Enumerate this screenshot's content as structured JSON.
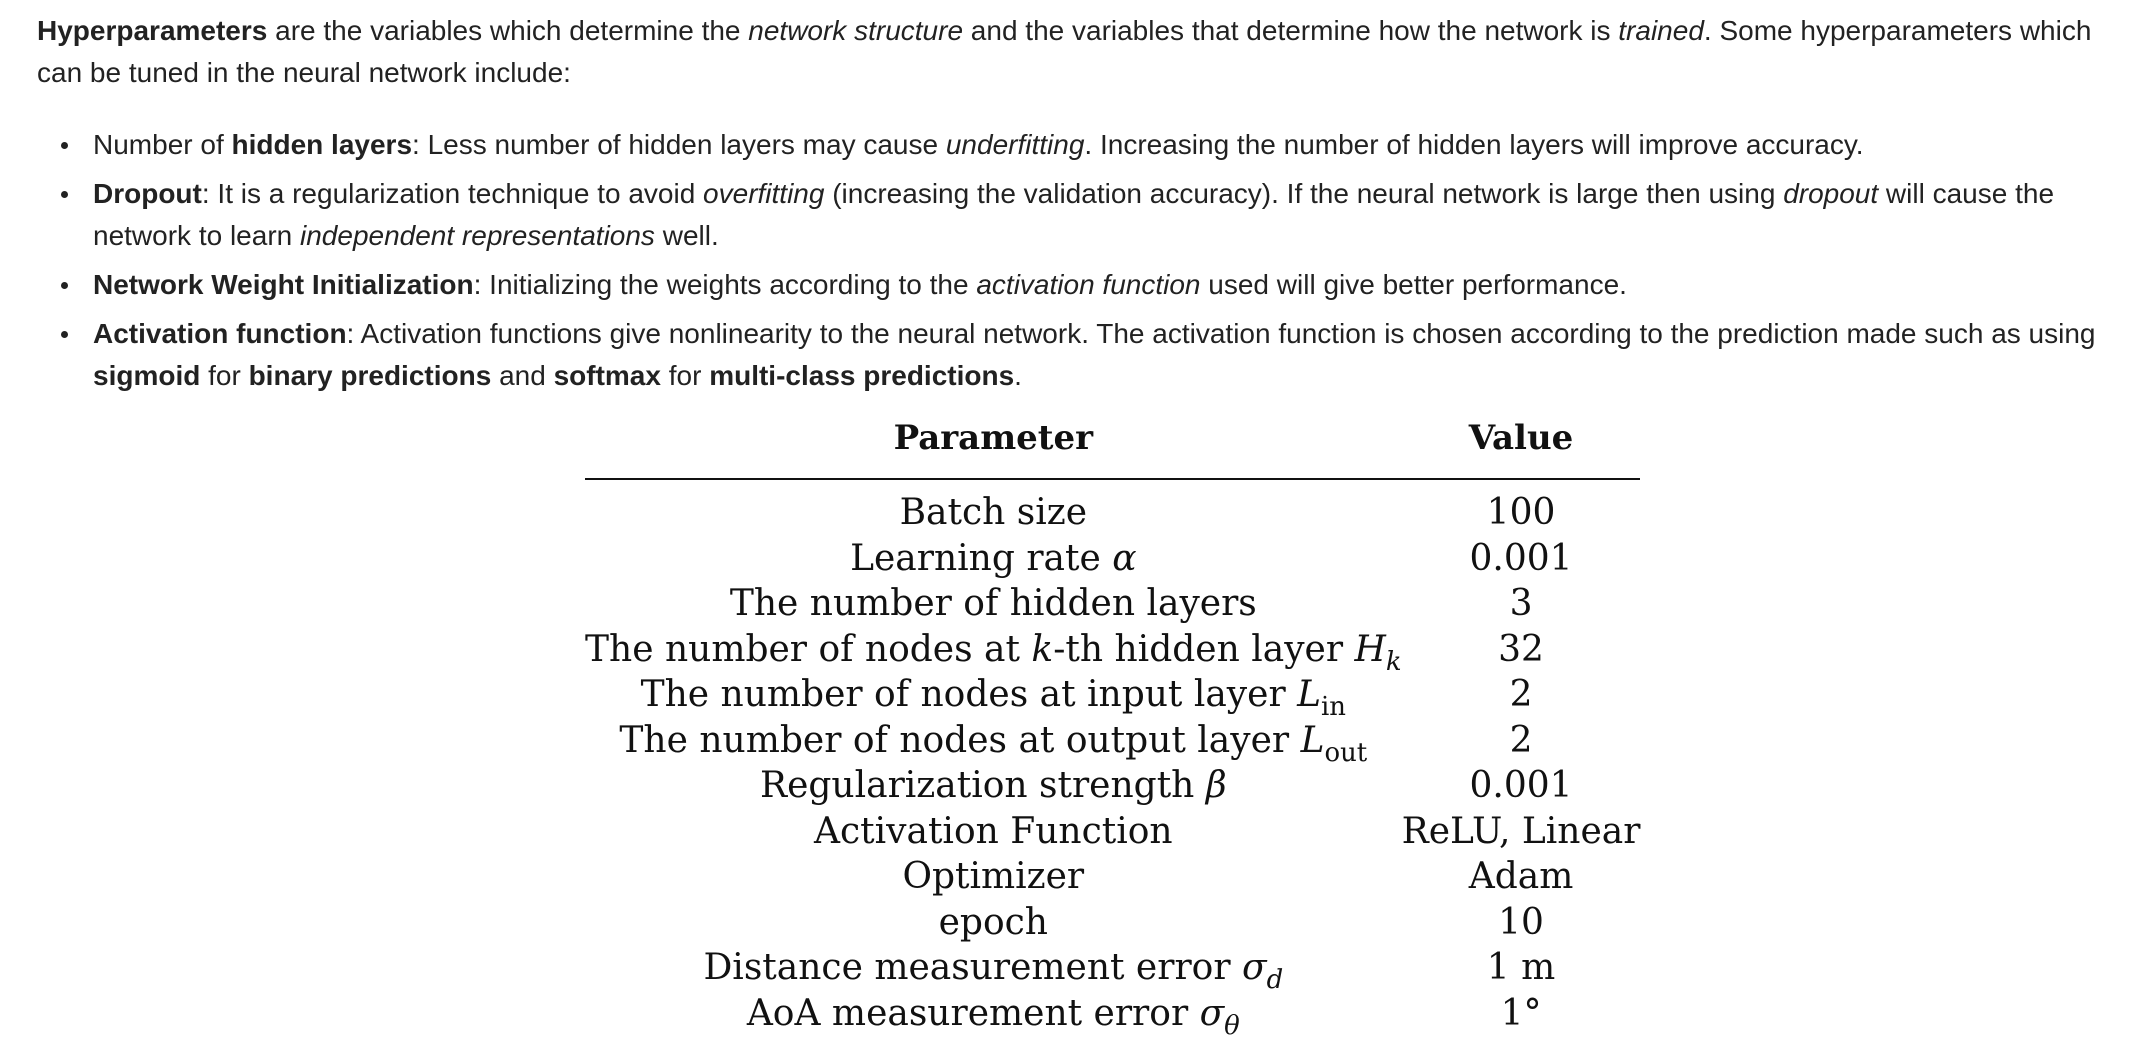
{
  "intro": {
    "term": "Hyperparameters",
    "text_1": " are the variables which determine the ",
    "em_1": "network structure",
    "text_2": " and the variables that determine how the network is ",
    "em_2": "trained",
    "text_3": ". Some hyperparameters which can be tuned in the neural network include:"
  },
  "bullets": {
    "hidden_layers": {
      "pre": "Number of ",
      "term": "hidden layers",
      "text_1": ": Less number of hidden layers may cause ",
      "em_1": "underfitting",
      "text_2": ". Increasing the number of hidden layers will improve accuracy."
    },
    "dropout": {
      "term": "Dropout",
      "text_1": ": It is a regularization technique to avoid ",
      "em_1": "overfitting",
      "text_2": " (increasing the validation accuracy). If the neural network is large then using ",
      "em_2": "dropout",
      "text_3": " will cause the network to learn ",
      "em_3": "independent representations",
      "text_4": " well."
    },
    "weight_init": {
      "term": "Network Weight Initialization",
      "text_1": ": Initializing the weights according to the ",
      "em_1": "activation function",
      "text_2": " used will give better performance."
    },
    "activation": {
      "term": "Activation function",
      "text_1": ": Activation functions give nonlinearity to the neural network. The activation function is chosen according to the prediction made such as using ",
      "b_1": "sigmoid",
      "text_2": " for ",
      "b_2": "binary predictions",
      "text_3": " and ",
      "b_3": "softmax",
      "text_4": " for ",
      "b_4": "multi-class predictions",
      "text_5": "."
    }
  },
  "table": {
    "header": {
      "parameter": "Parameter",
      "value": "Value"
    },
    "rows": [
      {
        "param": "Batch size",
        "value": "100"
      },
      {
        "param": "Learning rate ",
        "sym": "α",
        "value": "0.001"
      },
      {
        "param": "The number of hidden layers",
        "value": "3"
      },
      {
        "param_pre": "The number of nodes at ",
        "k": "k",
        "param_post": "-th hidden layer ",
        "sym": "H",
        "sub": "k",
        "value": "32"
      },
      {
        "param": "The number of nodes at input layer ",
        "sym": "L",
        "sub": "in",
        "value": "2"
      },
      {
        "param": "The number of nodes at output layer ",
        "sym": "L",
        "sub": "out",
        "value": "2"
      },
      {
        "param": "Regularization strength ",
        "sym": "β",
        "value": "0.001"
      },
      {
        "param": "Activation Function",
        "value": "ReLU, Linear"
      },
      {
        "param": "Optimizer",
        "value": "Adam"
      },
      {
        "param": "epoch",
        "value": "10"
      },
      {
        "param": "Distance measurement error ",
        "sym": "σ",
        "sub": "d",
        "value": "1 m"
      },
      {
        "param": "AoA measurement error ",
        "sym": "σ",
        "sub": "θ",
        "value": "1°"
      }
    ]
  }
}
